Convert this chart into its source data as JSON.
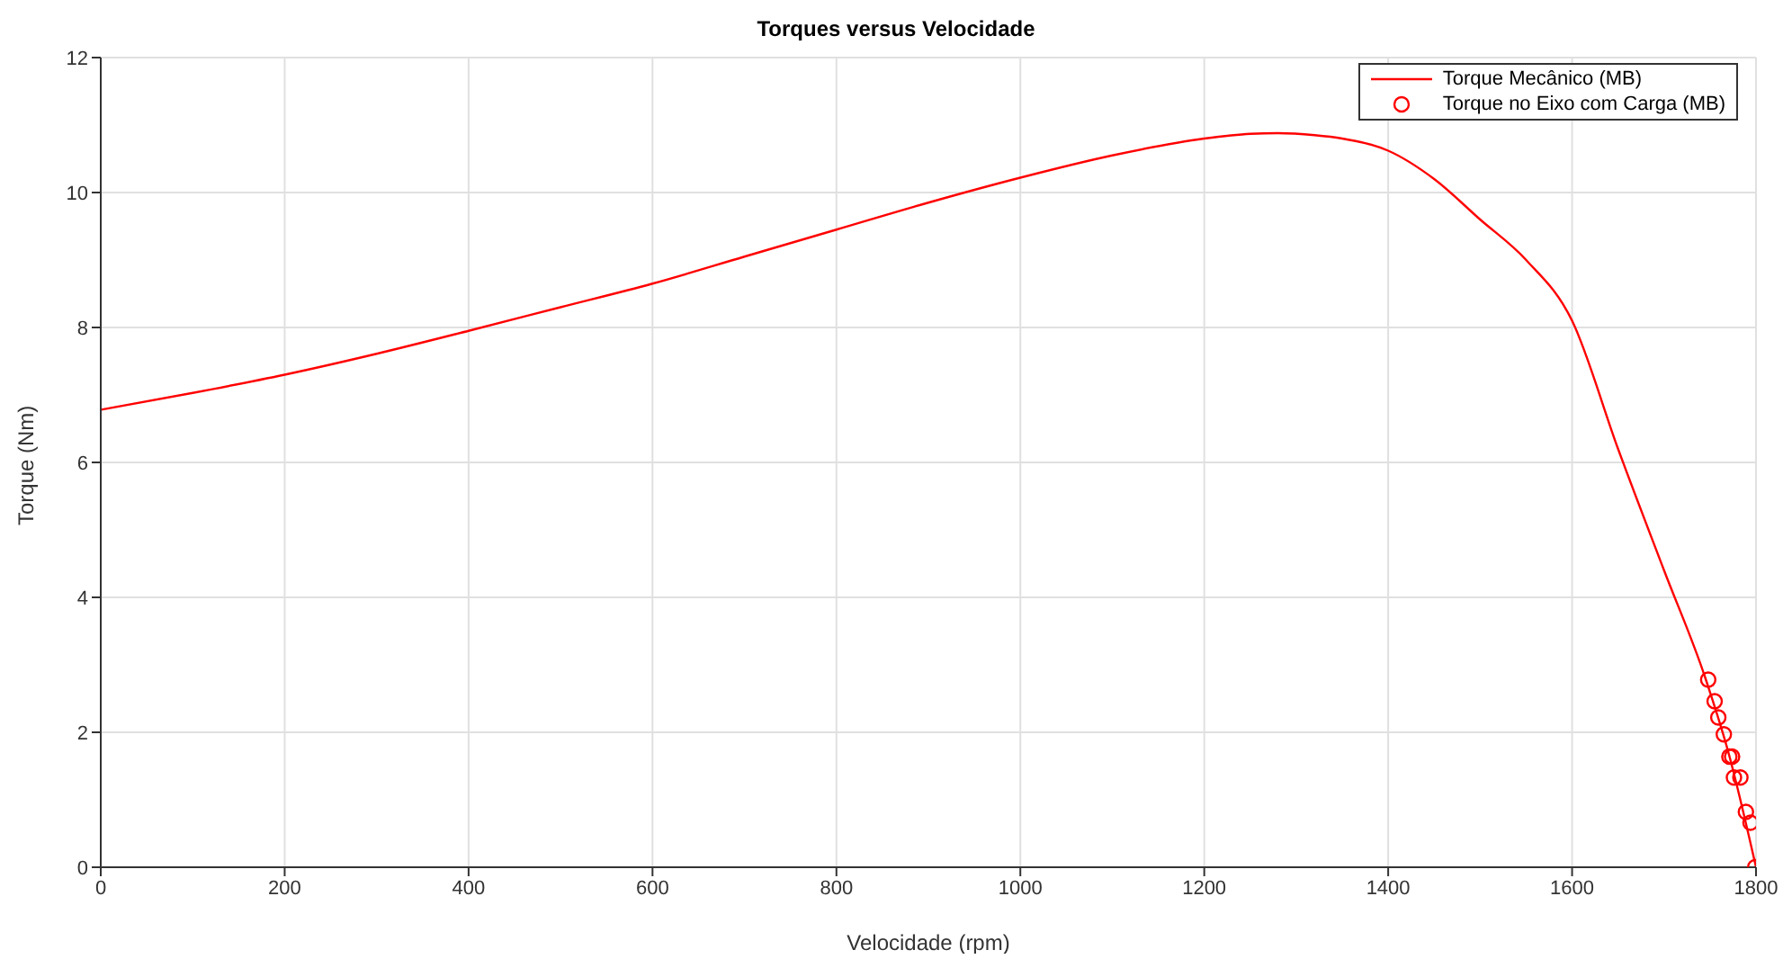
{
  "chart_data": {
    "type": "line",
    "title": "Torques versus Velocidade",
    "xlabel": "Velocidade (rpm)",
    "ylabel": "Torque (Nm)",
    "xlim": [
      0,
      1800
    ],
    "xticks": [
      0,
      200,
      400,
      600,
      800,
      1000,
      1200,
      1400,
      1600,
      1800
    ],
    "ylim": [
      0,
      12
    ],
    "yticks": [
      0,
      2,
      4,
      6,
      8,
      10,
      12
    ],
    "grid": true,
    "legend": "top right",
    "series": [
      {
        "name": "Torque Mecânico (MB)",
        "color": "#ff0000",
        "marker": "none",
        "x": [
          0,
          100,
          200,
          300,
          400,
          500,
          600,
          700,
          800,
          900,
          1000,
          1100,
          1200,
          1250,
          1280,
          1320,
          1350,
          1400,
          1450,
          1500,
          1550,
          1600,
          1650,
          1700,
          1745,
          1770,
          1800
        ],
        "values": [
          6.78,
          7.03,
          7.3,
          7.61,
          7.95,
          8.3,
          8.65,
          9.05,
          9.45,
          9.85,
          10.22,
          10.55,
          10.8,
          10.87,
          10.88,
          10.85,
          10.8,
          10.62,
          10.2,
          9.6,
          9.0,
          8.1,
          6.2,
          4.4,
          2.8,
          1.7,
          0
        ]
      },
      {
        "name": "Torque no Eixo com Carga (MB)",
        "type": "scatter",
        "color": "#ff0000",
        "marker": "circle",
        "x": [
          1748,
          1755,
          1759,
          1765,
          1771,
          1774,
          1776,
          1783,
          1789,
          1794,
          1799
        ],
        "values": [
          2.78,
          2.46,
          2.22,
          1.97,
          1.64,
          1.64,
          1.33,
          1.33,
          0.82,
          0.66,
          0
        ]
      }
    ]
  }
}
